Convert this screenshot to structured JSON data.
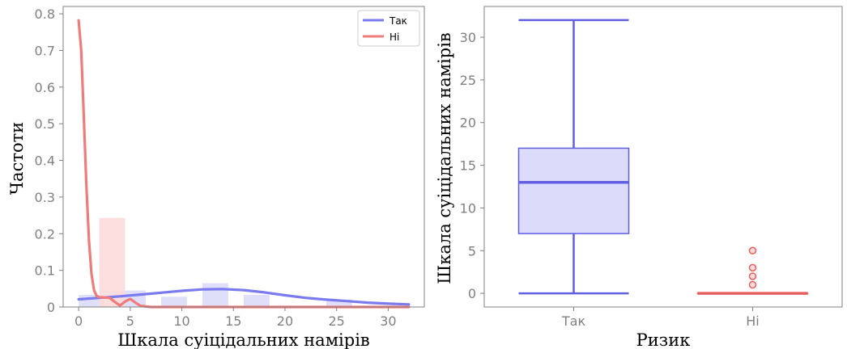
{
  "chart_data": [
    {
      "type": "histogram-kde",
      "xlabel": "Шкала суіцідальних намірів",
      "ylabel": "Частоти",
      "xlim": [
        -1.5,
        33.5
      ],
      "ylim": [
        0,
        0.82
      ],
      "xticks": [
        0,
        5,
        10,
        15,
        20,
        25,
        30
      ],
      "yticks": [
        0.0,
        0.1,
        0.2,
        0.3,
        0.4,
        0.5,
        0.6,
        0.7,
        0.8
      ],
      "legend": {
        "position": "upper right"
      },
      "series": [
        {
          "name": "Так",
          "color": "#7b7bf0",
          "bar_color": "#dcdcfa",
          "bins": [
            [
              0,
              2.5,
              0.033
            ],
            [
              4,
              6.5,
              0.045
            ],
            [
              8,
              10.5,
              0.028
            ],
            [
              12,
              14.5,
              0.065
            ],
            [
              16,
              18.5,
              0.033
            ],
            [
              24,
              26.5,
              0.02
            ]
          ],
          "kde": {
            "x": [
              0,
              2,
              4,
              6,
              8,
              10,
              12,
              14,
              16,
              18,
              20,
              22,
              24,
              26,
              28,
              30,
              32
            ],
            "y": [
              0.021,
              0.025,
              0.029,
              0.034,
              0.039,
              0.044,
              0.048,
              0.049,
              0.046,
              0.04,
              0.032,
              0.025,
              0.02,
              0.016,
              0.012,
              0.009,
              0.007
            ]
          }
        },
        {
          "name": "Ні",
          "color": "#f07b7b",
          "bar_color": "#fcdada",
          "bins": [
            [
              2,
              4.5,
              0.243
            ]
          ],
          "kde": {
            "x": [
              0,
              0.25,
              0.5,
              0.75,
              1,
              1.25,
              1.5,
              1.75,
              2,
              2.5,
              3,
              3.5,
              4,
              4.5,
              5,
              5.5,
              6,
              7,
              9,
              12,
              20,
              32
            ],
            "y": [
              0.782,
              0.7,
              0.52,
              0.33,
              0.18,
              0.09,
              0.045,
              0.03,
              0.027,
              0.026,
              0.025,
              0.014,
              0.004,
              0.015,
              0.022,
              0.012,
              0.003,
              0.0,
              0.0,
              0.0,
              0.0,
              0.0
            ]
          }
        }
      ]
    },
    {
      "type": "box",
      "xlabel": "Ризик",
      "ylabel": "Шкала суіцідальних намірів",
      "categories": [
        "Так",
        "Ні"
      ],
      "ylim": [
        -1.6,
        33.6
      ],
      "yticks": [
        0,
        5,
        10,
        15,
        20,
        25,
        30
      ],
      "boxes": [
        {
          "name": "Так",
          "min": 0,
          "q1": 7,
          "median": 13,
          "q3": 17,
          "max": 32,
          "outliers": [],
          "color": "#5f5fe0",
          "fill": "#dcdcfa"
        },
        {
          "name": "Ні",
          "min": 0,
          "q1": 0,
          "median": 0,
          "q3": 0,
          "max": 0,
          "outliers": [
            1,
            2,
            3,
            5
          ],
          "color": "#e85f5f",
          "fill": "#fcdada"
        }
      ]
    }
  ]
}
